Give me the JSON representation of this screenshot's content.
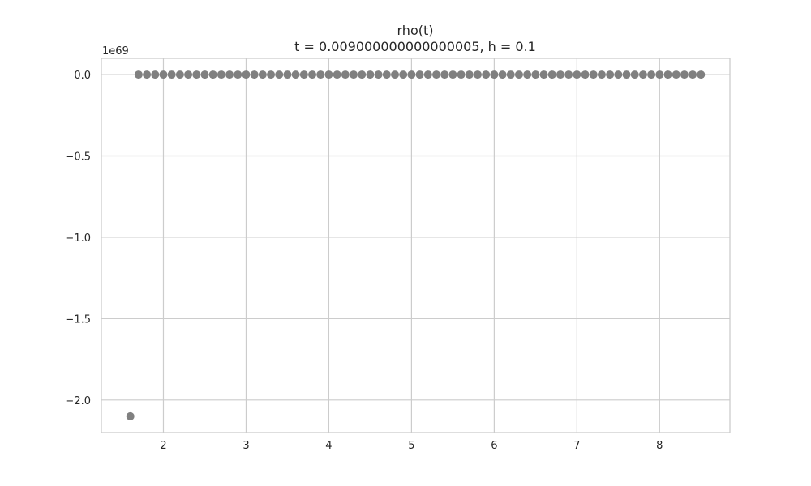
{
  "chart_data": {
    "type": "scatter",
    "title": "rho(t)",
    "subtitle": "t = 0.009000000000000005, h = 0.1",
    "xlabel": "",
    "ylabel": "",
    "y_offset_label": "1e69",
    "xlim": [
      1.25,
      8.85
    ],
    "ylim": [
      -2.2,
      0.1
    ],
    "x_ticks": [
      2,
      3,
      4,
      5,
      6,
      7,
      8
    ],
    "x_tick_labels": [
      "2",
      "3",
      "4",
      "5",
      "6",
      "7",
      "8"
    ],
    "y_ticks": [
      0.0,
      -0.5,
      -1.0,
      -1.5,
      -2.0
    ],
    "y_tick_labels": [
      "0.0",
      "−0.5",
      "−1.0",
      "−1.5",
      "−2.0"
    ],
    "grid": true,
    "marker_color": "#808080",
    "x_start": 1.6,
    "x_step": 0.1,
    "y": [
      -2.1,
      0.0,
      0.0,
      0.0,
      0.0,
      0.0,
      0.0,
      0.0,
      0.0,
      0.0,
      0.0,
      0.0,
      0.0,
      0.0,
      0.0,
      0.0,
      0.0,
      0.0,
      0.0,
      0.0,
      0.0,
      0.0,
      0.0,
      0.0,
      0.0,
      0.0,
      0.0,
      0.0,
      0.0,
      0.0,
      0.0,
      0.0,
      0.0,
      0.0,
      0.0,
      0.0,
      0.0,
      0.0,
      0.0,
      0.0,
      0.0,
      0.0,
      0.0,
      0.0,
      0.0,
      0.0,
      0.0,
      0.0,
      0.0,
      0.0,
      0.0,
      0.0,
      0.0,
      0.0,
      0.0,
      0.0,
      0.0,
      0.0,
      0.0,
      0.0,
      0.0,
      0.0,
      0.0,
      0.0,
      0.0,
      0.0,
      0.0,
      0.0,
      0.0,
      0.0
    ]
  }
}
